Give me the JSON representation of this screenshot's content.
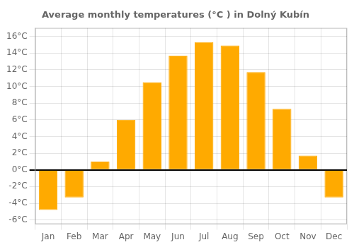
{
  "chart_data": {
    "type": "bar",
    "title": "Average monthly temperatures (°C ) in Dolný Kubín",
    "categories": [
      "Jan",
      "Feb",
      "Mar",
      "Apr",
      "May",
      "Jun",
      "Jul",
      "Aug",
      "Sep",
      "Oct",
      "Nov",
      "Dec"
    ],
    "values": [
      -4.8,
      -3.3,
      1.0,
      6.0,
      10.5,
      13.7,
      15.3,
      14.9,
      11.7,
      7.3,
      1.7,
      -3.3
    ],
    "color": "#FFAA00",
    "ylim": [
      -6.5,
      17
    ],
    "yticks": [
      {
        "value": -6,
        "label": "-6°C"
      },
      {
        "value": -4,
        "label": "-4°C"
      },
      {
        "value": -2,
        "label": "-2°C"
      },
      {
        "value": 0,
        "label": "0°C"
      },
      {
        "value": 2,
        "label": "2°C"
      },
      {
        "value": 4,
        "label": "4°C"
      },
      {
        "value": 6,
        "label": "6°C"
      },
      {
        "value": 8,
        "label": "8°C"
      },
      {
        "value": 10,
        "label": "10°C"
      },
      {
        "value": 12,
        "label": "12°C"
      },
      {
        "value": 14,
        "label": "14°C"
      },
      {
        "value": 16,
        "label": "16°C"
      }
    ],
    "grid": true
  }
}
